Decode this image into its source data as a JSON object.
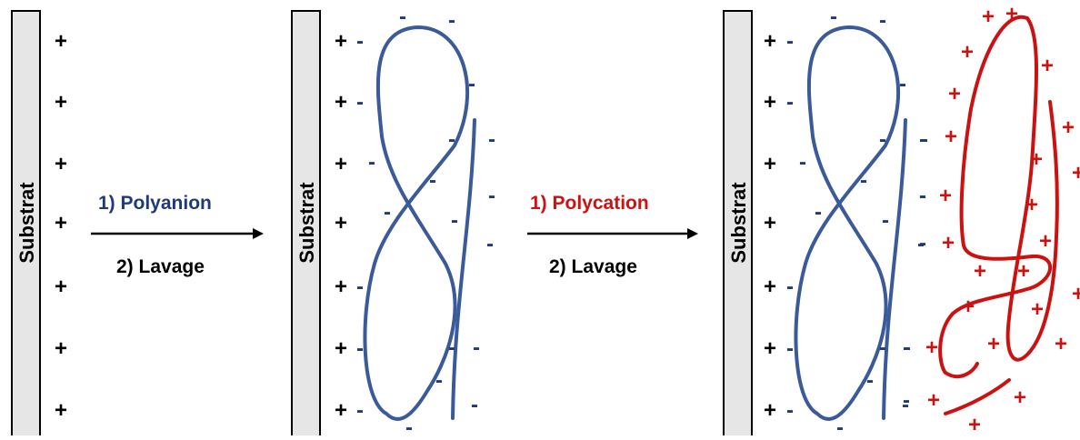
{
  "substrate_label": "Substrat",
  "step1": {
    "line1": "1)  Polyanion",
    "line2": "2)  Lavage"
  },
  "step2": {
    "line1": "1)  Polycation",
    "line2": "2)  Lavage"
  },
  "signs": {
    "positive": "+",
    "negative": "-"
  },
  "colors": {
    "substrate_fill": "#e6e6e6",
    "substrate_stroke": "#000000",
    "polyanion": "#3a5a9a",
    "polyanion_text": "#1f3a7a",
    "polycation": "#cc1111",
    "arrow": "#000000",
    "text": "#000000"
  }
}
